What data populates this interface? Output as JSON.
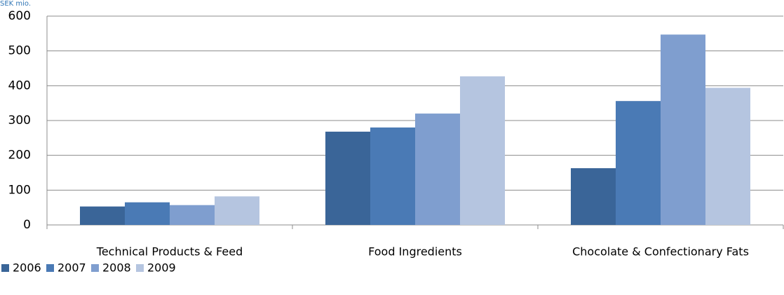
{
  "chart_data": {
    "type": "bar",
    "y_label": "SEK mio.",
    "categories": [
      "Technical Products & Feed",
      "Food Ingredients",
      "Chocolate & Confectionary Fats"
    ],
    "series": [
      {
        "name": "2006",
        "color": "#3a6598",
        "values": [
          53,
          268,
          163
        ]
      },
      {
        "name": "2007",
        "color": "#4a7ab5",
        "values": [
          65,
          280,
          356
        ]
      },
      {
        "name": "2008",
        "color": "#7f9ecf",
        "values": [
          57,
          320,
          547
        ]
      },
      {
        "name": "2009",
        "color": "#b5c5e0",
        "values": [
          82,
          427,
          394
        ]
      }
    ],
    "ylim": [
      0,
      600
    ],
    "yticks": [
      0,
      100,
      200,
      300,
      400,
      500,
      600
    ],
    "grid": true,
    "legend": "bottom-left"
  }
}
